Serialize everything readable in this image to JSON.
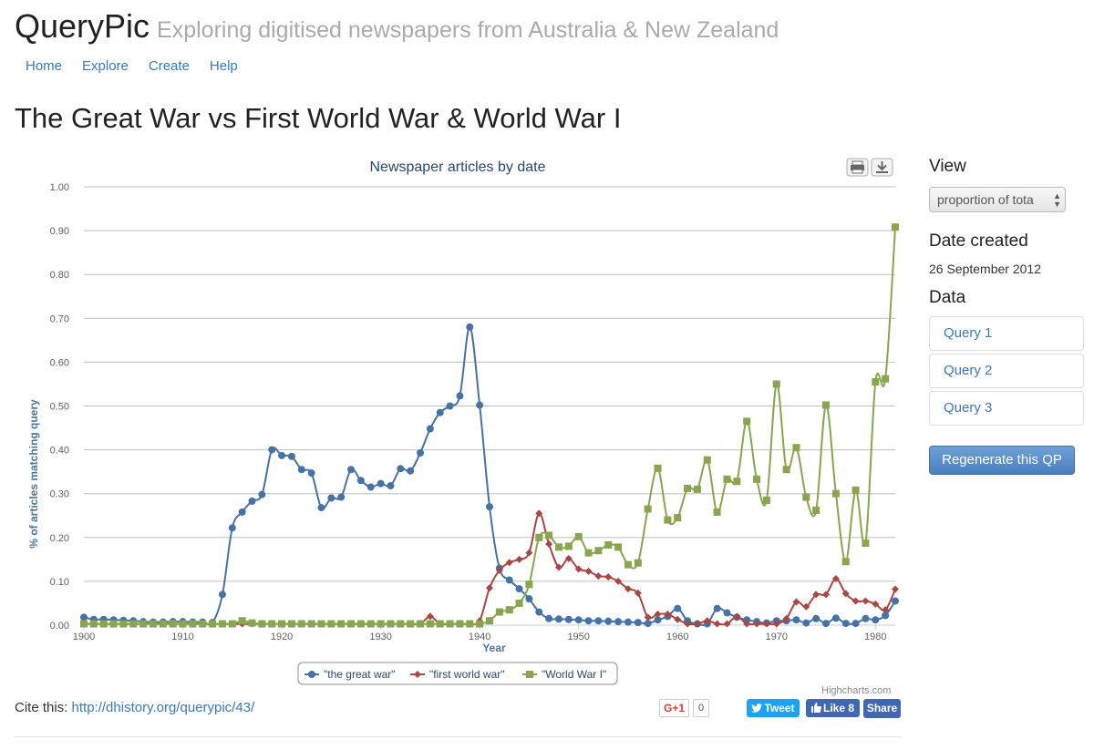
{
  "app": {
    "name": "QueryPic",
    "tagline": "Exploring digitised newspapers from Australia & New Zealand"
  },
  "nav": [
    {
      "label": "Home"
    },
    {
      "label": "Explore"
    },
    {
      "label": "Create"
    },
    {
      "label": "Help"
    }
  ],
  "page": {
    "title": "The Great War vs First World War & World War I"
  },
  "sidebar": {
    "view_heading": "View",
    "view_select_value": "proportion of tota",
    "date_heading": "Date created",
    "date_value": "26 September 2012",
    "data_heading": "Data",
    "queries": [
      {
        "label": "Query 1"
      },
      {
        "label": "Query 2"
      },
      {
        "label": "Query 3"
      }
    ],
    "regenerate_label": "Regenerate this QP"
  },
  "cite": {
    "label": "Cite this:",
    "url": "http://dhistory.org/querypic/43/"
  },
  "credits": "Highcharts.com",
  "social": {
    "gplus_label": "G+1",
    "gplus_count": "0",
    "tweet_label": "Tweet",
    "like_label": "Like 8",
    "share_label": "Share"
  },
  "icons": {
    "print": "print-icon",
    "download": "download-icon",
    "twitter": "twitter-bird-icon",
    "facebook": "facebook-thumb-icon"
  },
  "chart_data": {
    "type": "line",
    "title": "Newspaper articles by date",
    "xlabel": "Year",
    "ylabel": "% of articles matching query",
    "xlim": [
      1900,
      1982
    ],
    "ylim": [
      0,
      1.0
    ],
    "yticks": [
      "0.00",
      "0.10",
      "0.20",
      "0.30",
      "0.40",
      "0.50",
      "0.60",
      "0.70",
      "0.80",
      "0.90",
      "1.00"
    ],
    "xticks": [
      "1900",
      "1910",
      "1920",
      "1930",
      "1940",
      "1950",
      "1960",
      "1970",
      "1980"
    ],
    "grid": true,
    "legend_position": "bottom-center",
    "x": [
      1900,
      1901,
      1902,
      1903,
      1904,
      1905,
      1906,
      1907,
      1908,
      1909,
      1910,
      1911,
      1912,
      1913,
      1914,
      1915,
      1916,
      1917,
      1918,
      1919,
      1920,
      1921,
      1922,
      1923,
      1924,
      1925,
      1926,
      1927,
      1928,
      1929,
      1930,
      1931,
      1932,
      1933,
      1934,
      1935,
      1936,
      1937,
      1938,
      1939,
      1940,
      1941,
      1942,
      1943,
      1944,
      1945,
      1946,
      1947,
      1948,
      1949,
      1950,
      1951,
      1952,
      1953,
      1954,
      1955,
      1956,
      1957,
      1958,
      1959,
      1960,
      1961,
      1962,
      1963,
      1964,
      1965,
      1966,
      1967,
      1968,
      1969,
      1970,
      1971,
      1972,
      1973,
      1974,
      1975,
      1976,
      1977,
      1978,
      1979,
      1980,
      1981,
      1982
    ],
    "series": [
      {
        "name": "\"the great war\"",
        "color": "#4572A7",
        "marker": "circle",
        "values": [
          0.018,
          0.013,
          0.013,
          0.012,
          0.011,
          0.01,
          0.008,
          0.007,
          0.007,
          0.008,
          0.008,
          0.007,
          0.007,
          0.006,
          0.07,
          0.222,
          0.258,
          0.283,
          0.298,
          0.4,
          0.387,
          0.385,
          0.355,
          0.347,
          0.268,
          0.29,
          0.292,
          0.355,
          0.33,
          0.315,
          0.323,
          0.318,
          0.357,
          0.352,
          0.393,
          0.448,
          0.485,
          0.5,
          0.523,
          0.68,
          0.502,
          0.27,
          0.13,
          0.103,
          0.083,
          0.06,
          0.03,
          0.015,
          0.014,
          0.013,
          0.012,
          0.01,
          0.01,
          0.009,
          0.008,
          0.007,
          0.006,
          0.004,
          0.012,
          0.02,
          0.038,
          0.01,
          0.003,
          0.003,
          0.038,
          0.028,
          0.018,
          0.012,
          0.008,
          0.005,
          0.01,
          0.01,
          0.012,
          0.005,
          0.015,
          0.004,
          0.016,
          0.004,
          0.004,
          0.015,
          0.012,
          0.022,
          0.055
        ]
      },
      {
        "name": "\"first world war\"",
        "color": "#AA4643",
        "marker": "diamond",
        "values": [
          0.003,
          0.003,
          0.003,
          0.003,
          0.003,
          0.003,
          0.003,
          0.003,
          0.003,
          0.003,
          0.003,
          0.003,
          0.003,
          0.003,
          0.003,
          0.003,
          0.003,
          0.003,
          0.003,
          0.003,
          0.003,
          0.003,
          0.003,
          0.003,
          0.003,
          0.003,
          0.003,
          0.003,
          0.003,
          0.003,
          0.003,
          0.003,
          0.003,
          0.003,
          0.003,
          0.02,
          0.003,
          0.003,
          0.003,
          0.003,
          0.01,
          0.085,
          0.125,
          0.143,
          0.15,
          0.165,
          0.255,
          0.185,
          0.132,
          0.152,
          0.128,
          0.123,
          0.112,
          0.11,
          0.1,
          0.083,
          0.073,
          0.018,
          0.025,
          0.025,
          0.013,
          0.003,
          0.003,
          0.01,
          0.003,
          0.003,
          0.02,
          0.003,
          0.003,
          0.003,
          0.003,
          0.015,
          0.053,
          0.042,
          0.07,
          0.07,
          0.106,
          0.072,
          0.055,
          0.055,
          0.048,
          0.035,
          0.082
        ]
      },
      {
        "name": "\"World War I\"",
        "color": "#89A54E",
        "marker": "square",
        "values": [
          0.003,
          0.003,
          0.003,
          0.003,
          0.003,
          0.003,
          0.003,
          0.003,
          0.003,
          0.003,
          0.003,
          0.003,
          0.003,
          0.003,
          0.003,
          0.003,
          0.01,
          0.005,
          0.003,
          0.003,
          0.003,
          0.003,
          0.003,
          0.003,
          0.003,
          0.003,
          0.003,
          0.003,
          0.003,
          0.003,
          0.003,
          0.003,
          0.003,
          0.003,
          0.003,
          0.003,
          0.003,
          0.003,
          0.003,
          0.003,
          0.003,
          0.01,
          0.03,
          0.035,
          0.05,
          0.093,
          0.2,
          0.205,
          0.178,
          0.18,
          0.202,
          0.165,
          0.17,
          0.183,
          0.178,
          0.138,
          0.142,
          0.265,
          0.358,
          0.24,
          0.245,
          0.312,
          0.31,
          0.377,
          0.258,
          0.333,
          0.328,
          0.465,
          0.333,
          0.285,
          0.55,
          0.355,
          0.405,
          0.292,
          0.262,
          0.502,
          0.3,
          0.145,
          0.308,
          0.187,
          0.555,
          0.562,
          0.908
        ]
      }
    ]
  }
}
